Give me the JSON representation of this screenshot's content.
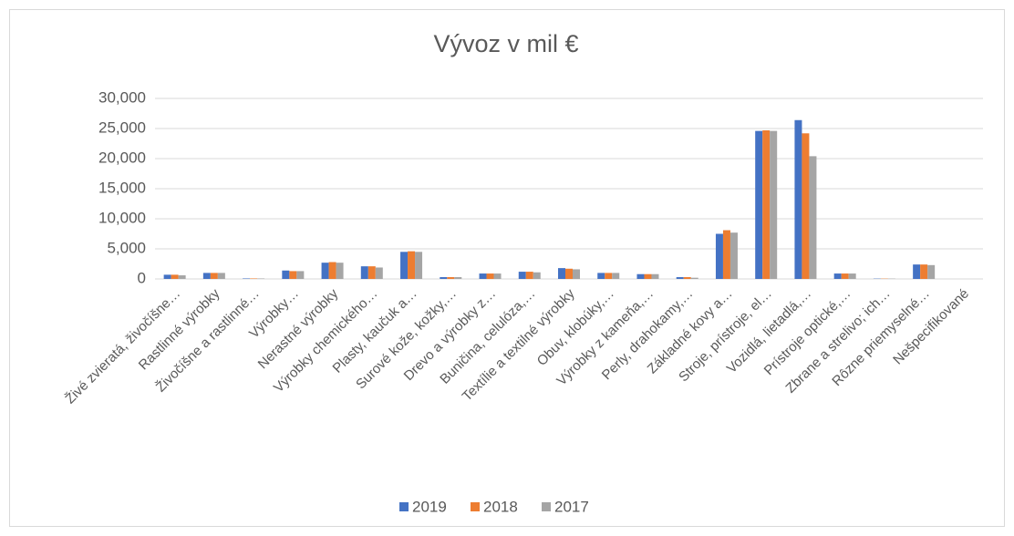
{
  "chart_data": {
    "type": "bar",
    "title": "Vývoz v mil €",
    "categories": [
      "Živé zvieratá, živočíšne…",
      "Rastlinné výrobky",
      "Živočíšne a rastlinné…",
      "Výrobky…",
      "Nerastné výrobky",
      "Výrobky chemického…",
      "Plasty, kaučuk a…",
      "Surové kože, kožky,…",
      "Drevo a výrobky z…",
      "Buničina, celulóza,…",
      "Textílie a textilné výrobky",
      "Obuv, klobúky,…",
      "Výrobky z kameňa,…",
      "Perly, drahokamy,…",
      "Základné kovy a…",
      "Stroje, prístroje, el…",
      "Vozidlá, lietadlá,…",
      "Prístroje optické,…",
      "Zbrane a strelivo; ich…",
      "Rôzne priemyselné…",
      "Nešpecifikované"
    ],
    "series": [
      {
        "name": "2019",
        "color": "#4472c4",
        "values": [
          700,
          1000,
          80,
          1400,
          2700,
          2100,
          4500,
          300,
          900,
          1200,
          1800,
          1000,
          800,
          300,
          7500,
          24600,
          26400,
          900,
          50,
          2400,
          0
        ]
      },
      {
        "name": "2018",
        "color": "#ed7d31",
        "values": [
          700,
          1000,
          80,
          1300,
          2800,
          2100,
          4600,
          300,
          900,
          1200,
          1700,
          1000,
          800,
          300,
          8100,
          24700,
          24200,
          900,
          50,
          2400,
          0
        ]
      },
      {
        "name": "2017",
        "color": "#a5a5a5",
        "values": [
          600,
          1000,
          80,
          1300,
          2700,
          1900,
          4500,
          300,
          900,
          1100,
          1600,
          1000,
          800,
          200,
          7700,
          24600,
          20400,
          900,
          50,
          2300,
          0
        ]
      }
    ],
    "ylim": [
      0,
      30000
    ],
    "yticks": [
      0,
      {
        "value": 5000,
        "label": "5,000"
      },
      {
        "value": 10000,
        "label": "10,000"
      },
      {
        "value": 15000,
        "label": "15,000"
      },
      {
        "value": 20000,
        "label": "20,000"
      },
      {
        "value": 25000,
        "label": "25,000"
      },
      {
        "value": 30000,
        "label": "30,000"
      }
    ],
    "grid": true,
    "legend": "bottom"
  }
}
